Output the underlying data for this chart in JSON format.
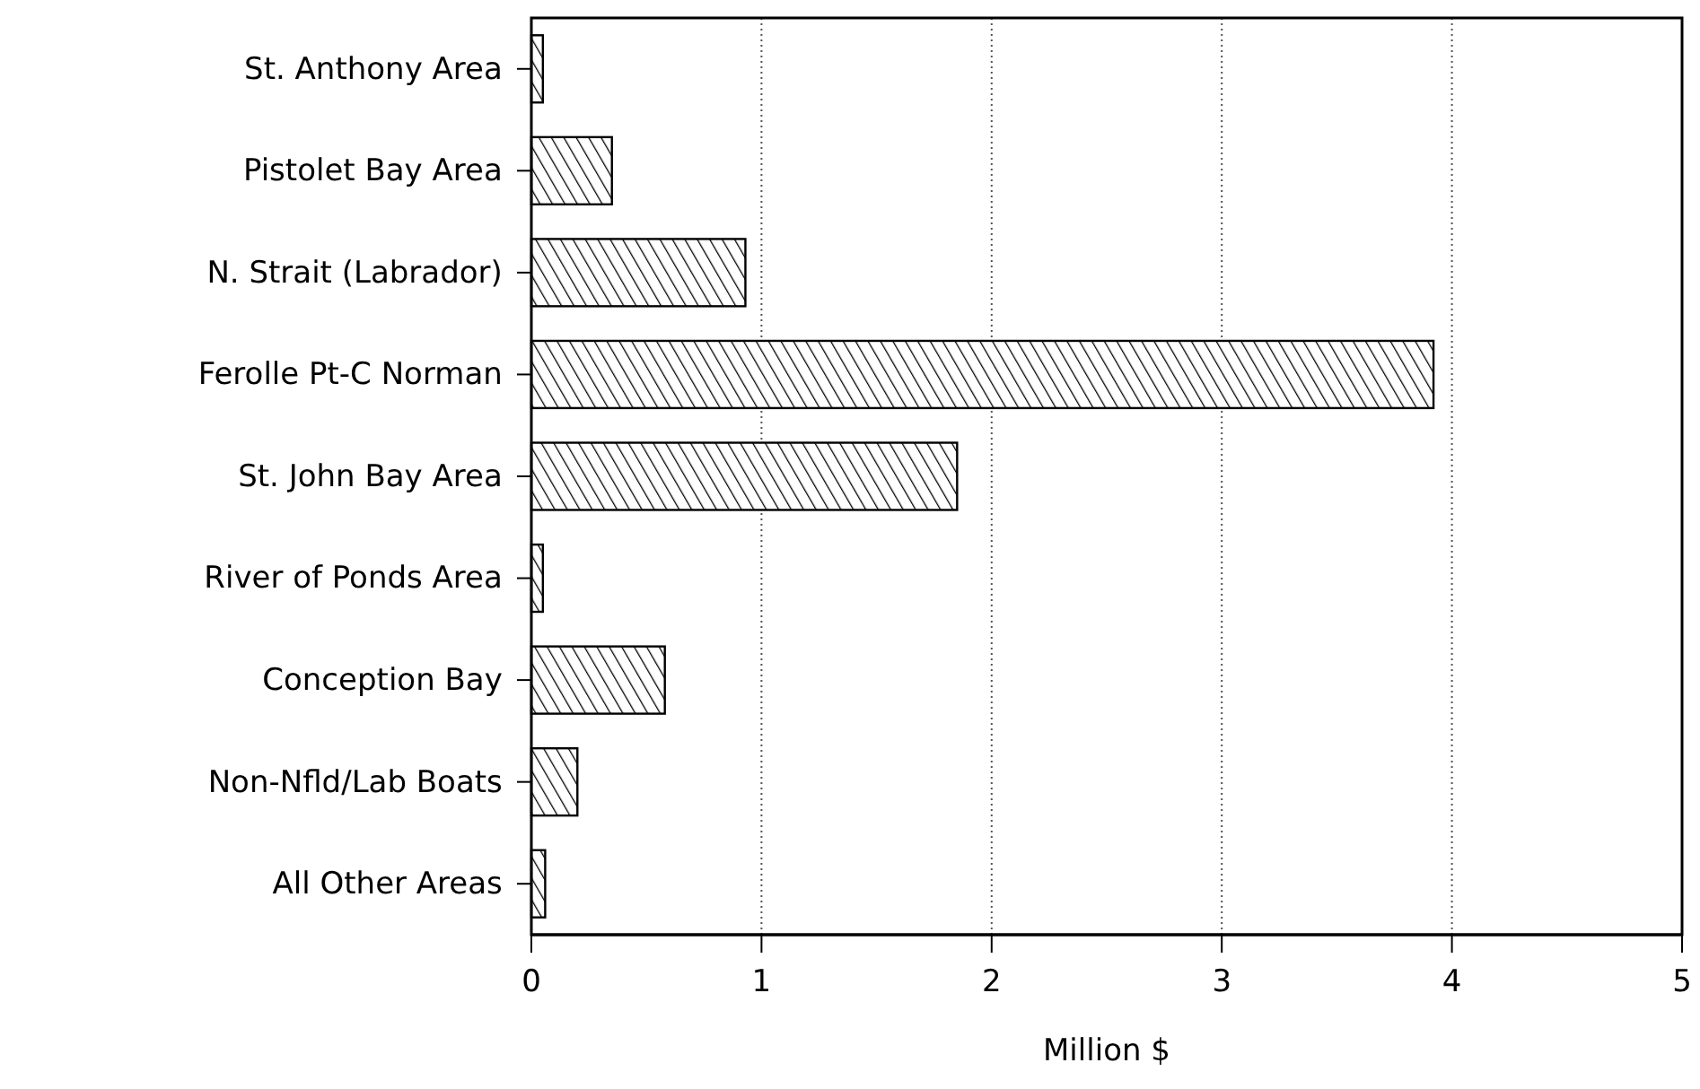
{
  "chart_data": {
    "type": "bar",
    "orientation": "horizontal",
    "xlabel": "Million $",
    "categories": [
      "St. Anthony Area",
      "Pistolet Bay Area",
      "N. Strait (Labrador)",
      "Ferolle Pt-C Norman",
      "St. John Bay Area",
      "River of Ponds Area",
      "Conception Bay",
      "Non-Nfld/Lab Boats",
      "All Other Areas"
    ],
    "values": [
      0.05,
      0.35,
      0.93,
      3.92,
      1.85,
      0.05,
      0.58,
      0.2,
      0.06
    ],
    "color": "#000000",
    "xlim": [
      0,
      5
    ],
    "xticks": [
      0,
      1,
      2,
      3,
      4,
      5
    ],
    "grid": "x"
  }
}
